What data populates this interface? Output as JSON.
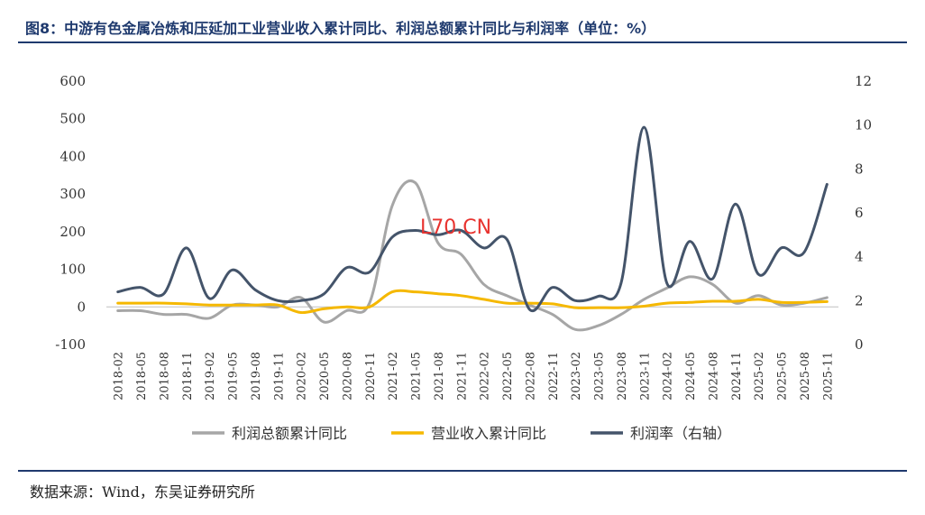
{
  "header": {
    "title": "图8：中游有色金属冶炼和压延加工业营业收入累计同比、利润总额累计同比与利润率（单位：%）"
  },
  "footer": {
    "source": "数据来源：Wind，东吴证券研究所"
  },
  "watermark": "L70.CN",
  "chart_data": {
    "type": "line",
    "title": "中游有色金属冶炼和压延加工业营业收入累计同比、利润总额累计同比与利润率（单位：%）",
    "xlabel": "",
    "ylabel": "",
    "ylim": [
      -100,
      600
    ],
    "y2lim": [
      0,
      12
    ],
    "yticks": [
      "600",
      "500",
      "400",
      "300",
      "200",
      "100",
      "0",
      "-100"
    ],
    "y2ticks": [
      "12",
      "10",
      "8",
      "6",
      "4",
      "2",
      "0"
    ],
    "categories": [
      "2018-02",
      "2018-05",
      "2018-08",
      "2018-11",
      "2019-02",
      "2019-05",
      "2019-08",
      "2019-11",
      "2020-02",
      "2020-05",
      "2020-08",
      "2020-11",
      "2021-02",
      "2021-05",
      "2021-08",
      "2021-11",
      "2022-02",
      "2022-05",
      "2022-08",
      "2022-11",
      "2023-02",
      "2023-05",
      "2023-08",
      "2023-11",
      "2024-02",
      "2024-05",
      "2024-08",
      "2024-11",
      "2025-02",
      "2025-05",
      "2025-08",
      "2025-11"
    ],
    "series": [
      {
        "name": "利润总额累计同比",
        "axis": "left",
        "color": "#a6a6a6",
        "values": [
          -10,
          -10,
          -20,
          -20,
          -30,
          5,
          5,
          0,
          25,
          -40,
          -10,
          10,
          270,
          330,
          170,
          140,
          60,
          30,
          5,
          -20,
          -60,
          -50,
          -20,
          20,
          50,
          80,
          60,
          10,
          30,
          5,
          10,
          25
        ]
      },
      {
        "name": "营业收入累计同比",
        "axis": "left",
        "color": "#f5b800",
        "values": [
          10,
          10,
          10,
          8,
          5,
          5,
          5,
          5,
          -15,
          -5,
          0,
          0,
          40,
          40,
          35,
          30,
          20,
          10,
          10,
          8,
          -2,
          -2,
          -2,
          2,
          10,
          12,
          15,
          15,
          20,
          12,
          12,
          14
        ]
      },
      {
        "name": "利润率（右轴）",
        "axis": "right",
        "color": "#44546a",
        "values": [
          2.4,
          2.6,
          2.3,
          4.4,
          2.1,
          3.4,
          2.5,
          2.0,
          2.0,
          2.3,
          3.5,
          3.3,
          4.9,
          5.2,
          5.0,
          5.2,
          4.4,
          4.8,
          1.6,
          2.6,
          2.0,
          2.2,
          2.8,
          9.9,
          2.8,
          4.7,
          3.0,
          6.4,
          3.2,
          4.4,
          4.2,
          7.3
        ]
      }
    ],
    "legend": [
      "利润总额累计同比",
      "营业收入累计同比",
      "利润率（右轴）"
    ],
    "legend_position": "bottom-center"
  }
}
